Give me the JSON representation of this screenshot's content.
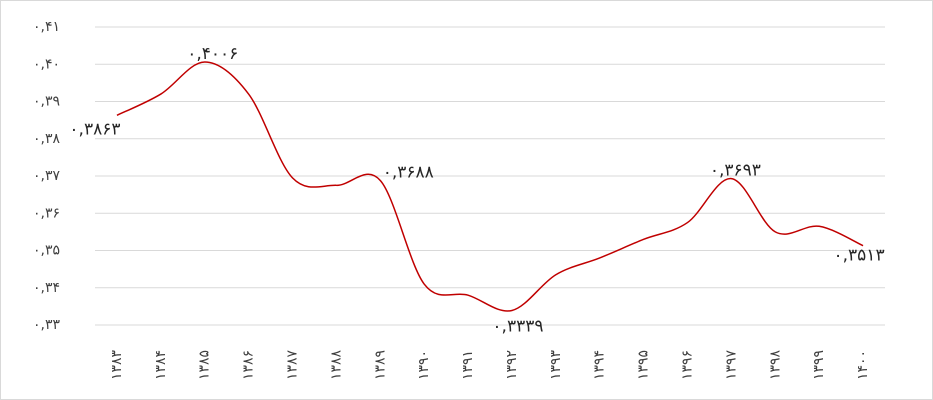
{
  "chart_data": {
    "type": "line",
    "categories": [
      "۱۳۸۳",
      "۱۳۸۴",
      "۱۳۸۵",
      "۱۳۸۶",
      "۱۳۸۷",
      "۱۳۸۸",
      "۱۳۸۹",
      "۱۳۹۰",
      "۱۳۹۱",
      "۱۳۹۲",
      "۱۳۹۳",
      "۱۳۹۴",
      "۱۳۹۵",
      "۱۳۹۶",
      "۱۳۹۷",
      "۱۳۹۸",
      "۱۳۹۹",
      "۱۴۰۰"
    ],
    "series": [
      {
        "color": "#c00000",
        "values": [
          0.3863,
          0.392,
          0.4006,
          0.392,
          0.3695,
          0.3675,
          0.3688,
          0.341,
          0.338,
          0.3339,
          0.3435,
          0.348,
          0.353,
          0.3575,
          0.3693,
          0.355,
          0.3565,
          0.3513
        ],
        "value_labels": [
          "۰,۳۸۶۳",
          null,
          "۰,۴۰۰۶",
          null,
          null,
          null,
          "۰,۳۶۸۸",
          null,
          null,
          "۰,۳۳۳۹",
          null,
          null,
          null,
          null,
          "۰,۳۶۹۳",
          null,
          null,
          "۰,۳۵۱۳"
        ]
      }
    ],
    "ylim": [
      0.33,
      0.41
    ],
    "yticks": [
      {
        "value": 0.33,
        "label": "۰,۳۳"
      },
      {
        "value": 0.34,
        "label": "۰,۳۴"
      },
      {
        "value": 0.35,
        "label": "۰,۳۵"
      },
      {
        "value": 0.36,
        "label": "۰,۳۶"
      },
      {
        "value": 0.37,
        "label": "۰,۳۷"
      },
      {
        "value": 0.38,
        "label": "۰,۳۸"
      },
      {
        "value": 0.39,
        "label": "۰,۳۹"
      },
      {
        "value": 0.4,
        "label": "۰,۴۰"
      },
      {
        "value": 0.41,
        "label": "۰,۴۱"
      }
    ],
    "grid": true
  }
}
